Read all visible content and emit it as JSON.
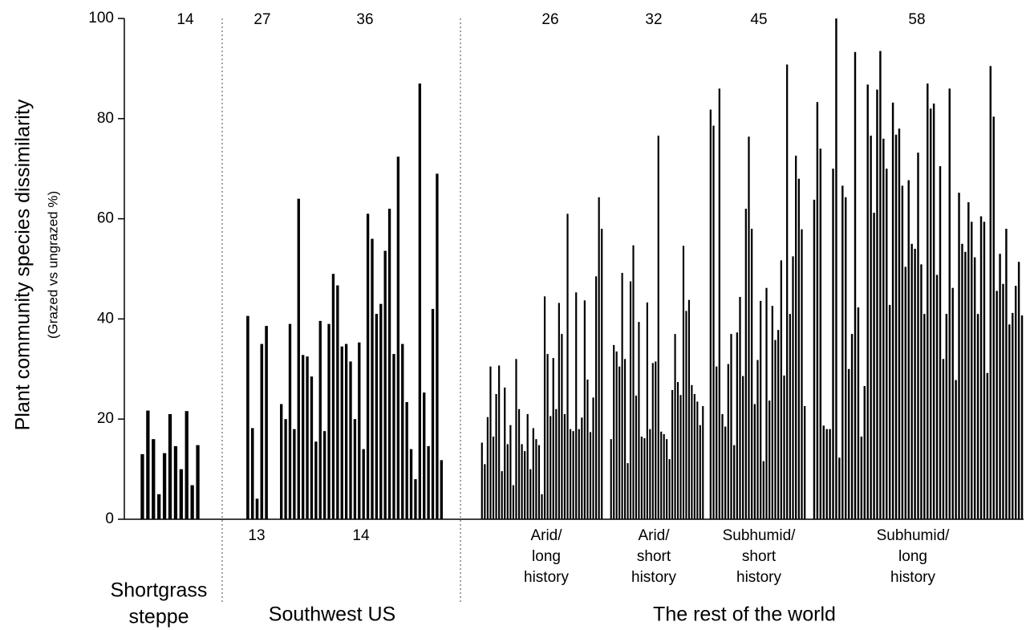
{
  "chart_data": {
    "type": "bar",
    "ylabel": "Plant community species dissimilarity",
    "ylabel_sub": "(Grazed vs ungrazed %)",
    "ylim": [
      0,
      100
    ],
    "yticks": [
      0,
      20,
      40,
      60,
      80,
      100
    ],
    "color": "#000000",
    "regions": [
      {
        "name": [
          "Shortgrass",
          "steppe"
        ]
      },
      {
        "name": [
          "Southwest US"
        ]
      },
      {
        "name": [
          "The rest of the world"
        ]
      }
    ],
    "groups": [
      {
        "n_top": 14,
        "values": [
          13,
          21.7,
          16,
          5,
          13.2,
          21,
          14.6,
          10,
          21.6,
          6.8,
          14.8
        ]
      },
      {
        "n_top": 27,
        "n_bottom": 13,
        "values": [
          40.6,
          18.2,
          4.1,
          35,
          38.6
        ]
      },
      {
        "n_top": 36,
        "n_bottom": 14,
        "values": [
          23,
          20,
          39,
          18,
          64,
          32.8,
          32.5,
          28.5,
          15.5,
          39.6,
          17.6,
          39,
          49,
          46.7,
          34.5,
          35,
          31.5,
          20,
          35.3,
          14,
          61,
          56,
          41,
          43,
          53.6,
          62,
          33,
          72.4,
          35,
          23.4,
          14,
          8,
          87,
          25.3,
          14.6,
          42,
          69,
          11.8
        ]
      },
      {
        "n_top": 26,
        "label": [
          "Arid/",
          "long",
          "history"
        ],
        "values": [
          15.3,
          11,
          20.4,
          30.5,
          16.5,
          25,
          30.7,
          9.6,
          26.3,
          15,
          18.8,
          6.8,
          32,
          22,
          15,
          13.6,
          21,
          10,
          18.2,
          16,
          14.8,
          5,
          44.5,
          33,
          20.6,
          32.2,
          22,
          43.2,
          37,
          21,
          61,
          18,
          17.6,
          45.3,
          18,
          20.3,
          43.7,
          27.9,
          17.4,
          24.3,
          48.5,
          64.3,
          58
        ]
      },
      {
        "n_top": 32,
        "label": [
          "Arid/",
          "short",
          "history"
        ],
        "values": [
          16,
          34.8,
          33.5,
          30.5,
          49.2,
          32,
          11.2,
          47.5,
          54.7,
          24.7,
          39.4,
          16.5,
          16.2,
          43.3,
          18,
          31.2,
          31.5,
          76.6,
          17.5,
          17,
          16,
          12,
          25.8,
          37,
          27.4,
          24.8,
          54.6,
          41.6,
          43.8,
          26.8,
          25,
          23.5,
          18.8,
          22.6
        ]
      },
      {
        "n_top": 45,
        "label": [
          "Subhumid/",
          "short",
          "history"
        ],
        "values": [
          81.8,
          78.6,
          30.5,
          86,
          21,
          18.5,
          31,
          37,
          14.8,
          37.3,
          44.4,
          28.6,
          62,
          76.4,
          58,
          23,
          31.8,
          43.6,
          11.6,
          46.2,
          23.7,
          42.6,
          35.8,
          37.8,
          51.7,
          28.7,
          90.8,
          41,
          52.5,
          72.6,
          68,
          57.9,
          22.6
        ]
      },
      {
        "n_top": 58,
        "label": [
          "Subhumid/",
          "long",
          "history"
        ],
        "values": [
          63.8,
          83.3,
          74,
          18.7,
          18,
          18,
          70,
          100,
          12.3,
          66.6,
          64.3,
          30,
          37,
          93.3,
          42.3,
          16.5,
          26.6,
          86.8,
          76.6,
          61.2,
          85.8,
          93.5,
          76,
          70,
          42.8,
          83.2,
          76.8,
          78,
          66.6,
          50.4,
          67.7,
          55,
          54,
          73.2,
          50.9,
          41,
          87,
          82,
          83,
          48.8,
          70.5,
          32,
          41,
          86,
          46.2,
          27.8,
          65.2,
          55,
          53.4,
          63.3,
          59.4,
          52.3,
          41,
          60.5,
          59.4,
          29.2,
          90.5,
          80.4,
          45.6,
          53,
          47,
          58,
          38.9,
          41.2,
          46.6,
          51.4,
          40.7
        ]
      }
    ]
  }
}
